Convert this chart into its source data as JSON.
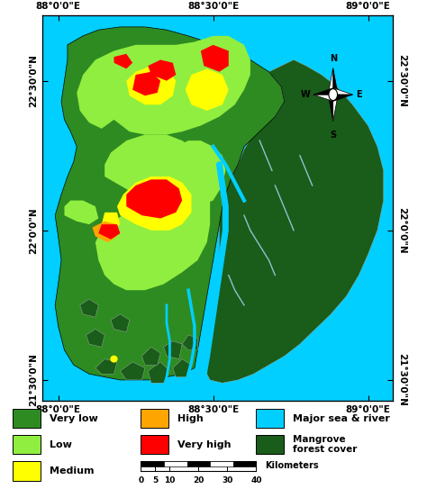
{
  "background_color": "#ffffff",
  "sea_color": "#00CFFF",
  "very_low_color": "#2E8B22",
  "low_color": "#90EE40",
  "medium_color": "#FFFF00",
  "high_color": "#FFA500",
  "very_high_color": "#FF0000",
  "mangrove_color": "#1A5C1A",
  "river_color": "#00CFFF",
  "xlim": [
    87.95,
    89.08
  ],
  "ylim": [
    21.43,
    22.72
  ],
  "x_ticks": [
    88.0,
    88.5,
    89.0
  ],
  "x_tick_labels": [
    "88°0'0\"E",
    "88°30'0\"E",
    "89°0'0\"E"
  ],
  "y_ticks": [
    21.5,
    22.0,
    22.5
  ],
  "y_tick_labels": [
    "21°30'0\"N",
    "22°0'0\"N",
    "22°30'0\"N"
  ],
  "figsize": [
    4.74,
    5.53
  ],
  "dpi": 100
}
